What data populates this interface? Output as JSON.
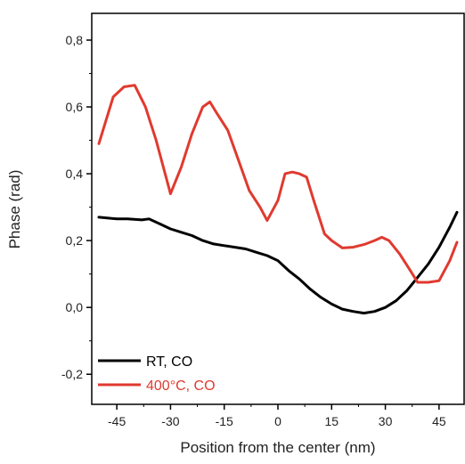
{
  "chart_data": {
    "type": "line",
    "xlabel": "Position from the center (nm)",
    "ylabel": "Phase (rad)",
    "xlim": [
      -52,
      52
    ],
    "ylim": [
      -0.29,
      0.88
    ],
    "xticks": [
      -45,
      -30,
      -15,
      0,
      15,
      30,
      45
    ],
    "xtick_labels": [
      "-45",
      "-30",
      "-15",
      "0",
      "15",
      "30",
      "45"
    ],
    "yticks": [
      -0.2,
      0.0,
      0.2,
      0.4,
      0.6,
      0.8
    ],
    "ytick_labels": [
      "-0,2",
      "0,0",
      "0,2",
      "0,4",
      "0,6",
      "0,8"
    ],
    "legend_position": "bottom-left",
    "series": [
      {
        "name": "RT, CO",
        "color": "#000000",
        "x": [
          -50,
          -45,
          -42,
          -38,
          -36,
          -33,
          -30,
          -27,
          -24,
          -21,
          -18,
          -15,
          -12,
          -9,
          -6,
          -3,
          0,
          3,
          6,
          9,
          12,
          15,
          18,
          21,
          24,
          27,
          30,
          33,
          36,
          39,
          42,
          45,
          48,
          50
        ],
        "y": [
          0.27,
          0.265,
          0.265,
          0.262,
          0.265,
          0.25,
          0.235,
          0.225,
          0.215,
          0.2,
          0.19,
          0.185,
          0.18,
          0.175,
          0.165,
          0.155,
          0.14,
          0.11,
          0.085,
          0.055,
          0.03,
          0.01,
          -0.005,
          -0.012,
          -0.017,
          -0.012,
          0.0,
          0.02,
          0.05,
          0.09,
          0.13,
          0.18,
          0.24,
          0.285
        ]
      },
      {
        "name": "400°C, CO",
        "color": "#e03a2f",
        "x": [
          -50,
          -46,
          -43,
          -40,
          -37,
          -34,
          -31,
          -30,
          -27,
          -24,
          -21,
          -19,
          -17,
          -14,
          -11,
          -8,
          -5,
          -3,
          0,
          2,
          4,
          6,
          8,
          10,
          13,
          15,
          18,
          21,
          24,
          27,
          29,
          31,
          34,
          37,
          39,
          42,
          45,
          48,
          50
        ],
        "y": [
          0.49,
          0.63,
          0.66,
          0.665,
          0.6,
          0.5,
          0.38,
          0.34,
          0.42,
          0.52,
          0.6,
          0.615,
          0.58,
          0.53,
          0.44,
          0.35,
          0.3,
          0.26,
          0.32,
          0.4,
          0.405,
          0.4,
          0.39,
          0.32,
          0.22,
          0.2,
          0.178,
          0.18,
          0.188,
          0.2,
          0.21,
          0.2,
          0.16,
          0.11,
          0.075,
          0.075,
          0.08,
          0.14,
          0.195
        ]
      }
    ]
  }
}
